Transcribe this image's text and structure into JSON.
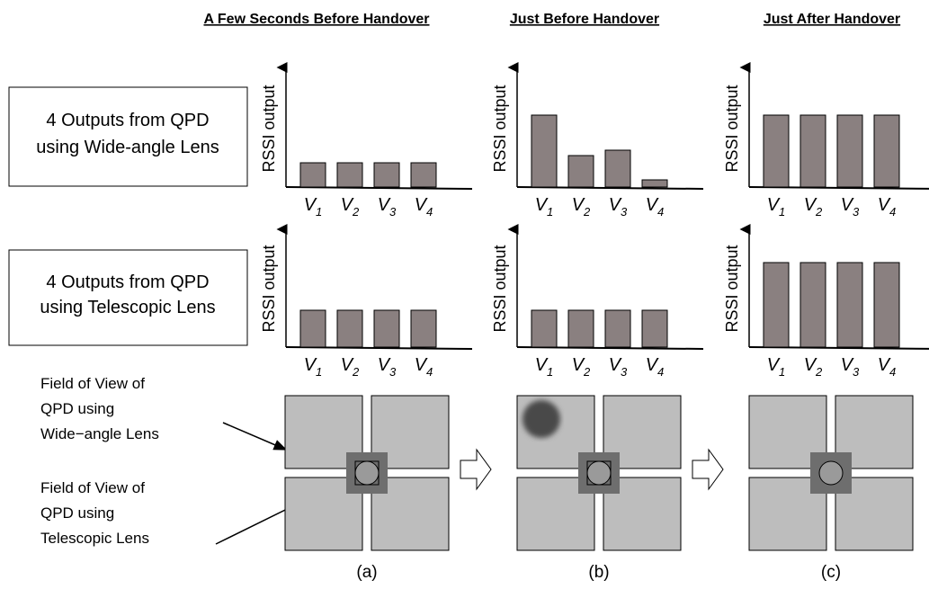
{
  "columns": [
    {
      "title": "A Few Seconds Before Handover",
      "caption": "(a)"
    },
    {
      "title": "Just Before Handover",
      "caption": "(b)"
    },
    {
      "title": "Just After Handover",
      "caption": "(c)"
    }
  ],
  "rows": [
    {
      "lines": [
        "4 Outputs from QPD",
        "using Wide-angle Lens"
      ],
      "charts": [
        {
          "values": [
            27,
            27,
            27,
            27
          ]
        },
        {
          "values": [
            80,
            35,
            41,
            8
          ]
        },
        {
          "values": [
            80,
            80,
            80,
            80
          ]
        }
      ]
    },
    {
      "lines": [
        "4 Outputs from QPD",
        "using Telescopic Lens"
      ],
      "charts": [
        {
          "values": [
            41,
            41,
            41,
            41
          ]
        },
        {
          "values": [
            41,
            41,
            41,
            41
          ]
        },
        {
          "values": [
            94,
            94,
            94,
            94
          ]
        }
      ]
    }
  ],
  "y_label": "RSSI output",
  "bar_labels": [
    {
      "letter": "V",
      "sub": "1"
    },
    {
      "letter": "V",
      "sub": "2"
    },
    {
      "letter": "V",
      "sub": "3"
    },
    {
      "letter": "V",
      "sub": "4"
    }
  ],
  "annotations": [
    {
      "lines": [
        "Field of View of",
        "QPD using",
        "Wide−angle Lens"
      ]
    },
    {
      "lines": [
        "Field of View of",
        "QPD using",
        "Telescopic Lens"
      ]
    }
  ]
}
